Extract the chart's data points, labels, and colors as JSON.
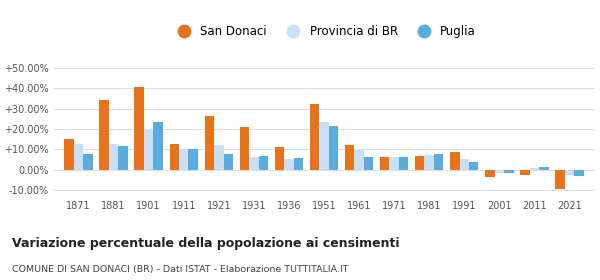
{
  "years": [
    1871,
    1881,
    1901,
    1911,
    1921,
    1931,
    1936,
    1951,
    1961,
    1971,
    1981,
    1991,
    2001,
    2011,
    2021
  ],
  "san_donaci": [
    15.0,
    34.5,
    40.5,
    12.5,
    26.5,
    21.0,
    11.0,
    32.5,
    12.0,
    6.0,
    6.5,
    8.5,
    -3.5,
    -2.5,
    -9.5
  ],
  "provincia_br": [
    12.5,
    12.5,
    20.0,
    10.0,
    12.0,
    6.0,
    5.0,
    23.5,
    10.0,
    6.0,
    7.0,
    5.0,
    -1.5,
    1.0,
    -2.5
  ],
  "puglia": [
    7.5,
    11.5,
    23.5,
    10.0,
    7.5,
    6.5,
    5.5,
    21.5,
    6.0,
    6.0,
    7.5,
    4.0,
    -1.5,
    1.5,
    -3.0
  ],
  "color_san_donaci": "#e8731a",
  "color_provincia": "#c8dff5",
  "color_puglia": "#5aace0",
  "ylim": [
    -13,
    56
  ],
  "yticks": [
    -10,
    0,
    10,
    20,
    30,
    40,
    50
  ],
  "title": "Variazione percentuale della popolazione ai censimenti",
  "subtitle": "COMUNE DI SAN DONACI (BR) - Dati ISTAT - Elaborazione TUTTITALIA.IT",
  "legend_labels": [
    "San Donaci",
    "Provincia di BR",
    "Puglia"
  ],
  "bar_width": 0.27
}
